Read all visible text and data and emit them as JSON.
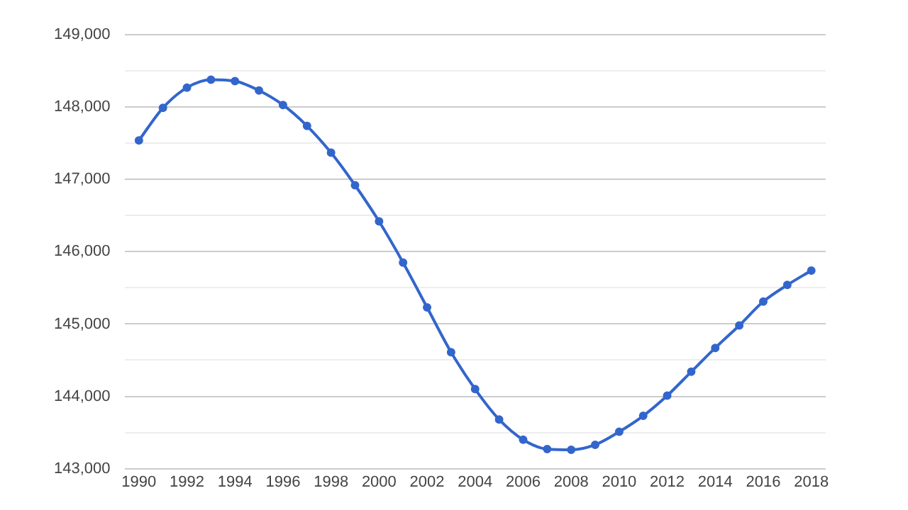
{
  "chart_data": {
    "type": "line",
    "x": [
      1990,
      1991,
      1992,
      1993,
      1994,
      1995,
      1996,
      1997,
      1998,
      1999,
      2000,
      2001,
      2002,
      2003,
      2004,
      2005,
      2006,
      2007,
      2008,
      2009,
      2010,
      2011,
      2012,
      2013,
      2014,
      2015,
      2016,
      2017,
      2018
    ],
    "series": [
      {
        "color": "#3366cc",
        "values": [
          147540,
          147990,
          148270,
          148380,
          148360,
          148230,
          148030,
          147740,
          147370,
          146920,
          146420,
          145850,
          145230,
          144610,
          144100,
          143680,
          143400,
          143270,
          143260,
          143330,
          143510,
          143730,
          144010,
          144340,
          144670,
          144980,
          145310,
          145540,
          145740
        ]
      }
    ],
    "xlim": [
      1989.4,
      2018.6
    ],
    "xticks": [
      1990,
      1992,
      1994,
      1996,
      1998,
      2000,
      2002,
      2004,
      2006,
      2008,
      2010,
      2012,
      2014,
      2016,
      2018
    ],
    "ylim": [
      143000,
      149000
    ],
    "yticks": [
      {
        "value": 143000,
        "label": "143,000"
      },
      {
        "value": 143500,
        "label": null
      },
      {
        "value": 144000,
        "label": "144,000"
      },
      {
        "value": 144500,
        "label": null
      },
      {
        "value": 145000,
        "label": "145,000"
      },
      {
        "value": 145500,
        "label": null
      },
      {
        "value": 146000,
        "label": "146,000"
      },
      {
        "value": 146500,
        "label": null
      },
      {
        "value": 147000,
        "label": "147,000"
      },
      {
        "value": 147500,
        "label": null
      },
      {
        "value": 148000,
        "label": "148,000"
      },
      {
        "value": 148500,
        "label": null
      },
      {
        "value": 149000,
        "label": "149,000"
      }
    ],
    "grid": "y",
    "legend": false,
    "marker": "circle",
    "line_style": "solid"
  }
}
